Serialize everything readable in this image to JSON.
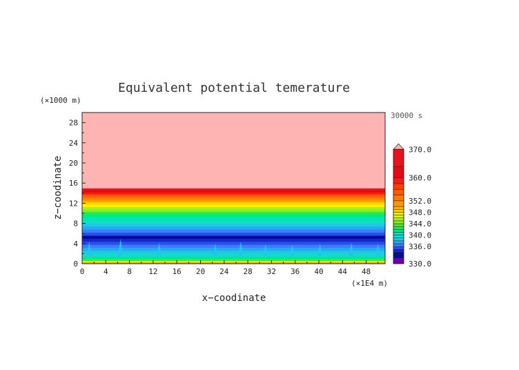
{
  "chart_data": {
    "type": "heatmap",
    "title": "Equivalent potential temerature",
    "xlabel": "x−coodinate",
    "ylabel": "z−coodinate",
    "x_unit": "(×1E4 m)",
    "y_unit": "(×1000 m)",
    "time_label": "30000 s",
    "xlim": [
      0,
      51.2
    ],
    "ylim": [
      0,
      30
    ],
    "x_ticks": [
      0,
      4,
      8,
      12,
      16,
      20,
      24,
      28,
      32,
      36,
      40,
      44,
      48
    ],
    "y_ticks": [
      0,
      4,
      8,
      12,
      16,
      20,
      24,
      28
    ],
    "colorbar": {
      "min": 330.0,
      "max": 372.0,
      "tick_labels": [
        "370.0",
        "360.0",
        "352.0",
        "348.0",
        "344.0",
        "340.0",
        "336.0",
        "330.0"
      ],
      "tick_values": [
        370,
        360,
        352,
        348,
        344,
        340,
        336,
        330
      ],
      "levels": [
        {
          "lo": 330,
          "hi": 332,
          "color": "#6a00a8"
        },
        {
          "lo": 332,
          "hi": 334,
          "color": "#0a0a9c"
        },
        {
          "lo": 334,
          "hi": 335,
          "color": "#1428c8"
        },
        {
          "lo": 335,
          "hi": 336,
          "color": "#2850e6"
        },
        {
          "lo": 336,
          "hi": 337,
          "color": "#3c7cff"
        },
        {
          "lo": 337,
          "hi": 338,
          "color": "#28a8f0"
        },
        {
          "lo": 338,
          "hi": 339,
          "color": "#1ec8e6"
        },
        {
          "lo": 339,
          "hi": 340,
          "color": "#14dcc8"
        },
        {
          "lo": 340,
          "hi": 341,
          "color": "#00e6b4"
        },
        {
          "lo": 341,
          "hi": 342,
          "color": "#00e68c"
        },
        {
          "lo": 342,
          "hi": 343,
          "color": "#28e650"
        },
        {
          "lo": 343,
          "hi": 344,
          "color": "#50e628"
        },
        {
          "lo": 344,
          "hi": 345,
          "color": "#82f01e"
        },
        {
          "lo": 345,
          "hi": 346,
          "color": "#aaf01e"
        },
        {
          "lo": 346,
          "hi": 347,
          "color": "#dcf028"
        },
        {
          "lo": 347,
          "hi": 348,
          "color": "#fff000"
        },
        {
          "lo": 348,
          "hi": 349,
          "color": "#ffd200"
        },
        {
          "lo": 349,
          "hi": 350,
          "color": "#ffb400"
        },
        {
          "lo": 350,
          "hi": 352,
          "color": "#ff9600"
        },
        {
          "lo": 352,
          "hi": 354,
          "color": "#ff7800"
        },
        {
          "lo": 354,
          "hi": 356,
          "color": "#ff5a00"
        },
        {
          "lo": 356,
          "hi": 358,
          "color": "#ff3c00"
        },
        {
          "lo": 358,
          "hi": 360,
          "color": "#f01e14"
        },
        {
          "lo": 360,
          "hi": 364,
          "color": "#e60a14"
        },
        {
          "lo": 364,
          "hi": 370,
          "color": "#e6141e"
        },
        {
          "lo": 370,
          "hi": 372,
          "color": "#ffb4b4"
        }
      ]
    },
    "vertical_profile": [
      {
        "z_lo": 0.0,
        "z_hi": 0.3,
        "value": 351
      },
      {
        "z_lo": 0.3,
        "z_hi": 0.6,
        "value": 346
      },
      {
        "z_lo": 0.6,
        "z_hi": 1.0,
        "value": 343
      },
      {
        "z_lo": 1.0,
        "z_hi": 1.4,
        "value": 341
      },
      {
        "z_lo": 1.4,
        "z_hi": 2.0,
        "value": 339
      },
      {
        "z_lo": 2.0,
        "z_hi": 2.6,
        "value": 338
      },
      {
        "z_lo": 2.6,
        "z_hi": 3.2,
        "value": 337
      },
      {
        "z_lo": 3.2,
        "z_hi": 3.8,
        "value": 336
      },
      {
        "z_lo": 3.8,
        "z_hi": 4.4,
        "value": 335
      },
      {
        "z_lo": 4.4,
        "z_hi": 5.0,
        "value": 334
      },
      {
        "z_lo": 5.0,
        "z_hi": 5.6,
        "value": 333
      },
      {
        "z_lo": 5.6,
        "z_hi": 6.2,
        "value": 335
      },
      {
        "z_lo": 6.2,
        "z_hi": 6.8,
        "value": 336
      },
      {
        "z_lo": 6.8,
        "z_hi": 7.4,
        "value": 337
      },
      {
        "z_lo": 7.4,
        "z_hi": 8.0,
        "value": 338
      },
      {
        "z_lo": 8.0,
        "z_hi": 8.6,
        "value": 339
      },
      {
        "z_lo": 8.6,
        "z_hi": 9.2,
        "value": 340
      },
      {
        "z_lo": 9.2,
        "z_hi": 9.8,
        "value": 341
      },
      {
        "z_lo": 9.8,
        "z_hi": 10.3,
        "value": 342
      },
      {
        "z_lo": 10.3,
        "z_hi": 10.8,
        "value": 344
      },
      {
        "z_lo": 10.8,
        "z_hi": 11.3,
        "value": 345
      },
      {
        "z_lo": 11.3,
        "z_hi": 11.8,
        "value": 347
      },
      {
        "z_lo": 11.8,
        "z_hi": 12.3,
        "value": 348
      },
      {
        "z_lo": 12.3,
        "z_hi": 12.8,
        "value": 350
      },
      {
        "z_lo": 12.8,
        "z_hi": 13.3,
        "value": 353
      },
      {
        "z_lo": 13.3,
        "z_hi": 13.8,
        "value": 355
      },
      {
        "z_lo": 13.8,
        "z_hi": 14.2,
        "value": 359
      },
      {
        "z_lo": 14.2,
        "z_hi": 14.6,
        "value": 362
      },
      {
        "z_lo": 14.6,
        "z_hi": 15.0,
        "value": 366
      },
      {
        "z_lo": 15.0,
        "z_hi": 30.0,
        "value": 371
      }
    ],
    "plumes": [
      {
        "x": 1.2,
        "top": 4.4,
        "value": 338
      },
      {
        "x": 6.5,
        "top": 4.9,
        "value": 338
      },
      {
        "x": 13.0,
        "top": 4.2,
        "value": 338
      },
      {
        "x": 22.5,
        "top": 4.0,
        "value": 338
      },
      {
        "x": 26.8,
        "top": 4.4,
        "value": 338
      },
      {
        "x": 31.0,
        "top": 3.9,
        "value": 338
      },
      {
        "x": 35.5,
        "top": 3.8,
        "value": 338
      },
      {
        "x": 40.2,
        "top": 4.0,
        "value": 338
      },
      {
        "x": 45.5,
        "top": 4.2,
        "value": 338
      },
      {
        "x": 50.0,
        "top": 4.0,
        "value": 338
      }
    ]
  }
}
